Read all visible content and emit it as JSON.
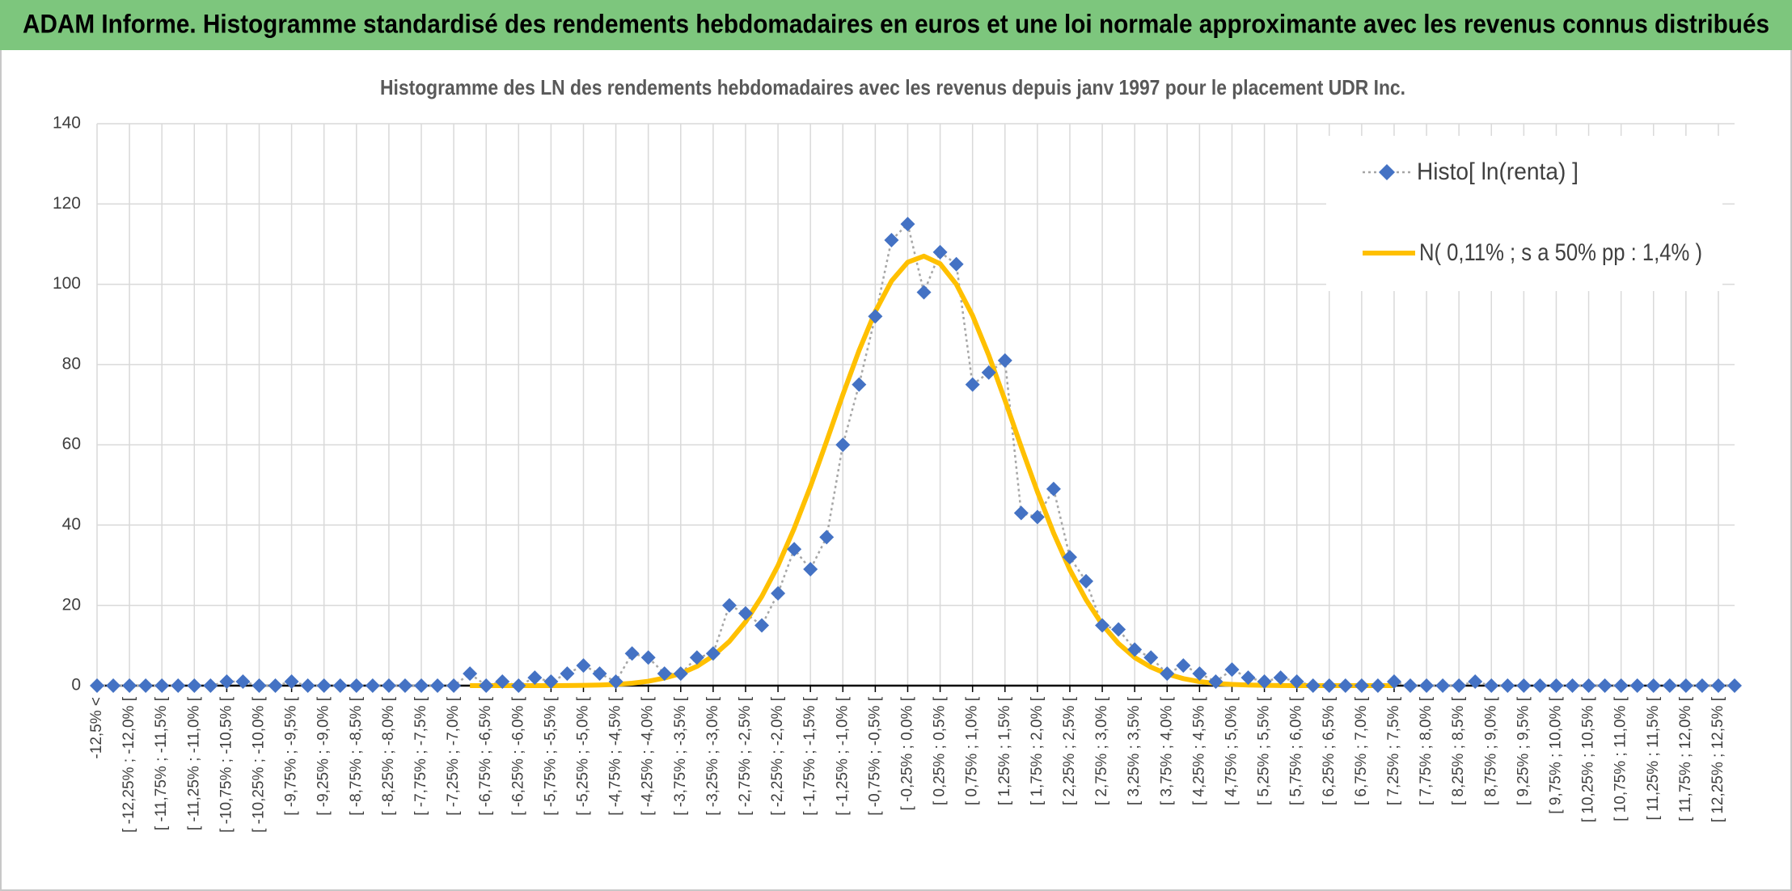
{
  "chart_data": {
    "type": "line",
    "title": "ADAM Informe. Histogramme standardisé des rendements hebdomadaires en euros et une loi normale approximante avec les revenus connus distribués",
    "subtitle": "Histogramme des LN des rendements hebdomadaires avec les revenus depuis janv 1997 pour le placement UDR Inc.",
    "categories": [
      "-12,5% <",
      null,
      "[ -12,25% ; -12,0% [",
      null,
      "[ -11,75% ; -11,5% [",
      null,
      "[ -11,25% ; -11,0% [",
      null,
      "[ -10,75% ; -10,5% [",
      null,
      "[ -10,25% ; -10,0% [",
      null,
      "[ -9,75% ; -9,5% [",
      null,
      "[ -9,25% ; -9,0% [",
      null,
      "[ -8,75% ; -8,5% [",
      null,
      "[ -8,25% ; -8,0% [",
      null,
      "[ -7,75% ; -7,5% [",
      null,
      "[ -7,25% ; -7,0% [",
      null,
      "[ -6,75% ; -6,5% [",
      null,
      "[ -6,25% ; -6,0% [",
      null,
      "[ -5,75% ; -5,5% [",
      null,
      "[ -5,25% ; -5,0% [",
      null,
      "[ -4,75% ; -4,5% [",
      null,
      "[ -4,25% ; -4,0% [",
      null,
      "[ -3,75% ; -3,5% [",
      null,
      "[ -3,25% ; -3,0% [",
      null,
      "[ -2,75% ; -2,5% [",
      null,
      "[ -2,25% ; -2,0% [",
      null,
      "[ -1,75% ; -1,5% [",
      null,
      "[ -1,25% ; -1,0% [",
      null,
      "[ -0,75% ; -0,5% [",
      null,
      "[ -0,25% ; 0,0% [",
      null,
      "[ 0,25% ; 0,5% [",
      null,
      "[ 0,75% ; 1,0% [",
      null,
      "[ 1,25% ; 1,5% [",
      null,
      "[ 1,75% ; 2,0% [",
      null,
      "[ 2,25% ; 2,5% [",
      null,
      "[ 2,75% ; 3,0% [",
      null,
      "[ 3,25% ; 3,5% [",
      null,
      "[ 3,75% ; 4,0% [",
      null,
      "[ 4,25% ; 4,5% [",
      null,
      "[ 4,75% ; 5,0% [",
      null,
      "[ 5,25% ; 5,5% [",
      null,
      "[ 5,75% ; 6,0% [",
      null,
      "[ 6,25% ; 6,5% [",
      null,
      "[ 6,75% ; 7,0% [",
      null,
      "[ 7,25% ; 7,5% [",
      null,
      "[ 7,75% ; 8,0% [",
      null,
      "[ 8,25% ; 8,5% [",
      null,
      "[ 8,75% ; 9,0% [",
      null,
      "[ 9,25% ; 9,5% [",
      null,
      "[ 9,75% ; 10,0% [",
      null,
      "[ 10,25% ; 10,5% [",
      null,
      "[ 10,75% ; 11,0% [",
      null,
      "[ 11,25% ; 11,5% [",
      null,
      "[ 11,75% ; 12,0% [",
      null,
      "[ 12,25% ; 12,5% [",
      null
    ],
    "series": [
      {
        "name": "Histo[ ln(renta) ]",
        "color": "#4472c4",
        "line_color": "#a6a6a6",
        "values": [
          0,
          0,
          0,
          0,
          0,
          0,
          0,
          0,
          1,
          1,
          0,
          0,
          1,
          0,
          0,
          0,
          0,
          0,
          0,
          0,
          0,
          0,
          0,
          3,
          0,
          1,
          0,
          2,
          1,
          3,
          5,
          3,
          1,
          8,
          7,
          3,
          3,
          7,
          8,
          20,
          18,
          15,
          23,
          34,
          29,
          37,
          60,
          75,
          92,
          111,
          115,
          98,
          108,
          105,
          75,
          78,
          81,
          43,
          42,
          49,
          32,
          26,
          15,
          14,
          9,
          7,
          3,
          5,
          3,
          1,
          4,
          2,
          1,
          2,
          1,
          0,
          0,
          0,
          0,
          0,
          1,
          0,
          0,
          0,
          0,
          1,
          0,
          0,
          0,
          0,
          0,
          0,
          0,
          0,
          0,
          0,
          0,
          0,
          0,
          0,
          0,
          0
        ]
      },
      {
        "name": "N( 0,11% ; s a 50% pp : 1,4% )",
        "color": "#ffc000",
        "values": [
          null,
          null,
          null,
          null,
          null,
          null,
          null,
          null,
          null,
          null,
          null,
          null,
          null,
          null,
          null,
          null,
          null,
          null,
          null,
          null,
          null,
          null,
          null,
          0,
          0,
          0,
          0,
          0,
          0,
          0.03,
          0.07,
          0.15,
          0.3,
          0.6,
          1.1,
          1.9,
          3.0,
          4.8,
          7.4,
          11.0,
          15.9,
          22.2,
          29.9,
          39.2,
          49.6,
          60.9,
          72.5,
          83.5,
          93.2,
          100.8,
          105.5,
          107,
          105.1,
          100,
          92.2,
          82.3,
          71.1,
          59.5,
          48.3,
          38,
          28.9,
          21.4,
          15.2,
          10.5,
          7,
          4.6,
          2.9,
          1.75,
          1,
          0.55,
          0.3,
          0.15,
          0.07,
          0.03,
          0,
          0,
          0,
          0,
          0,
          0,
          0,
          null,
          null,
          null,
          null,
          null,
          null,
          null,
          null,
          null,
          null,
          null,
          null,
          null,
          null,
          null,
          null,
          null,
          null,
          null,
          null,
          null
        ]
      }
    ],
    "ylim": [
      0,
      140
    ],
    "yticks": [
      0,
      20,
      40,
      60,
      80,
      100,
      120,
      140
    ],
    "grid": true,
    "legend": "top-right",
    "header_color": "#7dc67d"
  }
}
